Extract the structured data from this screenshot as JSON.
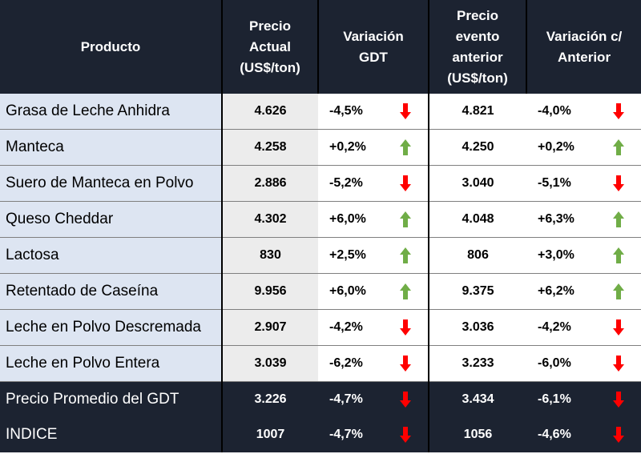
{
  "headers": {
    "product": "Producto",
    "price_lines": [
      "Precio",
      "Actual",
      "(US$/ton)"
    ],
    "variation_lines": [
      "Variación",
      "GDT"
    ],
    "prev_lines": [
      "Precio",
      "evento",
      "anterior",
      "(US$/ton)"
    ],
    "varprev_lines": [
      "Variación c/",
      "Anterior"
    ]
  },
  "colors": {
    "up": "#70ad47",
    "down": "#ff0000",
    "header_bg": "#1c2331",
    "product_bg": "#dde5f2",
    "price_bg": "#ececec"
  },
  "rows": [
    {
      "product": "Grasa de Leche Anhidra",
      "price": "4.626",
      "var": "-4,5%",
      "var_dir": "down",
      "prev": "4.821",
      "var_prev": "-4,0%",
      "var_prev_dir": "down"
    },
    {
      "product": "Manteca",
      "price": "4.258",
      "var": "+0,2%",
      "var_dir": "up",
      "prev": "4.250",
      "var_prev": "+0,2%",
      "var_prev_dir": "up"
    },
    {
      "product": "Suero de Manteca en Polvo",
      "price": "2.886",
      "var": "-5,2%",
      "var_dir": "down",
      "prev": "3.040",
      "var_prev": "-5,1%",
      "var_prev_dir": "down"
    },
    {
      "product": "Queso Cheddar",
      "price": "4.302",
      "var": "+6,0%",
      "var_dir": "up",
      "prev": "4.048",
      "var_prev": "+6,3%",
      "var_prev_dir": "up"
    },
    {
      "product": "Lactosa",
      "price": "830",
      "var": "+2,5%",
      "var_dir": "up",
      "prev": "806",
      "var_prev": "+3,0%",
      "var_prev_dir": "up"
    },
    {
      "product": "Retentado de Caseína",
      "price": "9.956",
      "var": "+6,0%",
      "var_dir": "up",
      "prev": "9.375",
      "var_prev": "+6,2%",
      "var_prev_dir": "up"
    },
    {
      "product": "Leche en Polvo Descremada",
      "price": "2.907",
      "var": "-4,2%",
      "var_dir": "down",
      "prev": "3.036",
      "var_prev": "-4,2%",
      "var_prev_dir": "down"
    },
    {
      "product": "Leche en Polvo Entera",
      "price": "3.039",
      "var": "-6,2%",
      "var_dir": "down",
      "prev": "3.233",
      "var_prev": "-6,0%",
      "var_prev_dir": "down"
    }
  ],
  "summary": [
    {
      "product": "Precio Promedio del GDT",
      "price": "3.226",
      "var": "-4,7%",
      "var_dir": "down",
      "prev": "3.434",
      "var_prev": "-6,1%",
      "var_prev_dir": "down"
    },
    {
      "product": "INDICE",
      "price": "1007",
      "var": "-4,7%",
      "var_dir": "down",
      "prev": "1056",
      "var_prev": "-4,6%",
      "var_prev_dir": "down"
    }
  ]
}
